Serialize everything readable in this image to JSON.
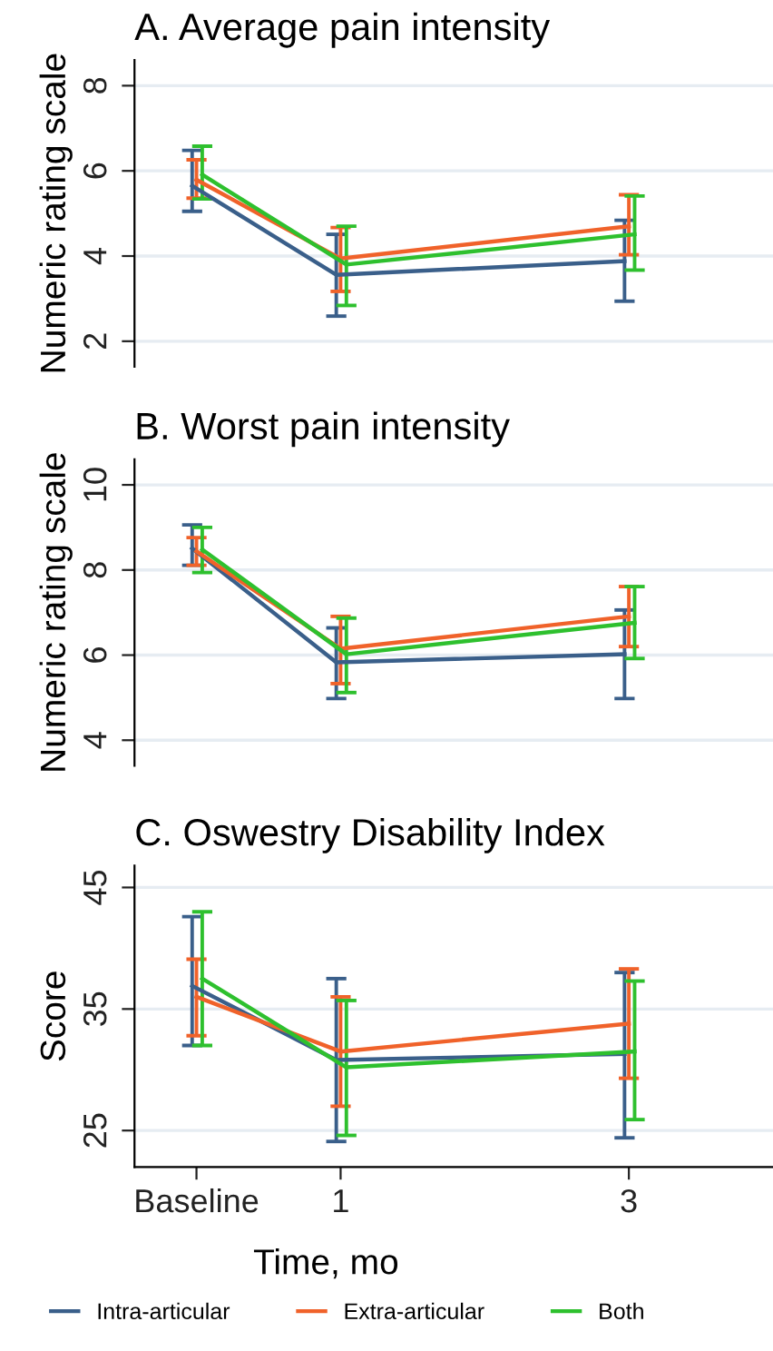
{
  "chart_data": [
    {
      "type": "line",
      "title": "A. Average pain intensity",
      "ylabel": "Numeric rating scale",
      "xlim": [
        -0.43,
        4.0
      ],
      "ylim": [
        1.4,
        8.6
      ],
      "yticks": [
        2,
        4,
        6,
        8
      ],
      "grid": "y",
      "tick_labels": "y",
      "marker": "none",
      "series": [
        {
          "color": "#3a5f8a",
          "x": [
            -0.03,
            0.97,
            2.97
          ],
          "values": [
            5.65,
            3.56,
            3.88
          ],
          "errors": [
            [
              5.05,
              6.48
            ],
            [
              2.59,
              4.51
            ],
            [
              2.94,
              4.84
            ]
          ]
        },
        {
          "color": "#f0622a",
          "x": [
            0,
            1,
            3
          ],
          "values": [
            5.79,
            3.94,
            4.7
          ],
          "errors": [
            [
              5.36,
              6.26
            ],
            [
              3.17,
              4.67
            ],
            [
              4.03,
              5.44
            ]
          ]
        },
        {
          "color": "#2ec02e",
          "x": [
            0.04,
            1.04,
            3.04
          ],
          "values": [
            5.91,
            3.8,
            4.51
          ],
          "errors": [
            [
              5.34,
              6.58
            ],
            [
              2.84,
              4.7
            ],
            [
              3.67,
              5.41
            ]
          ]
        }
      ]
    },
    {
      "type": "line",
      "title": "B. Worst pain intensity",
      "ylabel": "Numeric rating scale",
      "xlim": [
        -0.43,
        4.0
      ],
      "ylim": [
        3.4,
        10.6
      ],
      "yticks": [
        4,
        6,
        8,
        10
      ],
      "grid": "y",
      "tick_labels": "y",
      "marker": "none",
      "series": [
        {
          "color": "#3a5f8a",
          "x": [
            -0.03,
            0.97,
            2.97
          ],
          "values": [
            8.51,
            5.83,
            6.02
          ],
          "errors": [
            [
              8.11,
              9.06
            ],
            [
              4.98,
              6.64
            ],
            [
              4.98,
              7.06
            ]
          ]
        },
        {
          "color": "#f0622a",
          "x": [
            0,
            1,
            3
          ],
          "values": [
            8.44,
            6.15,
            6.91
          ],
          "errors": [
            [
              8.11,
              8.76
            ],
            [
              5.33,
              6.91
            ],
            [
              6.2,
              7.61
            ]
          ]
        },
        {
          "color": "#2ec02e",
          "x": [
            0.04,
            1.04,
            3.04
          ],
          "values": [
            8.48,
            6.02,
            6.76
          ],
          "errors": [
            [
              7.94,
              9.0
            ],
            [
              5.12,
              6.87
            ],
            [
              5.92,
              7.61
            ]
          ]
        }
      ]
    },
    {
      "type": "line",
      "title": "C. Oswestry Disability Index",
      "ylabel": "Score",
      "xlabel": "Time, mo",
      "xlim": [
        -0.43,
        4.0
      ],
      "xticks": [
        {
          "value": 0,
          "label": "Baseline"
        },
        1,
        3
      ],
      "ylim": [
        22,
        46.8
      ],
      "yticks": [
        25,
        35,
        45
      ],
      "grid": "y",
      "legend": "bottom",
      "marker": "none",
      "series": [
        {
          "name": "Intra-articular",
          "color": "#3a5f8a",
          "x": [
            -0.03,
            0.97,
            2.97
          ],
          "values": [
            36.9,
            30.8,
            31.3
          ],
          "errors": [
            [
              32.0,
              42.6
            ],
            [
              24.1,
              37.5
            ],
            [
              24.4,
              38.0
            ]
          ]
        },
        {
          "name": "Extra-articular",
          "color": "#f0622a",
          "x": [
            0,
            1,
            3
          ],
          "values": [
            36.0,
            31.5,
            33.8
          ],
          "errors": [
            [
              32.8,
              39.1
            ],
            [
              27.0,
              36.0
            ],
            [
              29.3,
              38.3
            ]
          ]
        },
        {
          "name": "Both",
          "color": "#2ec02e",
          "x": [
            0.04,
            1.04,
            3.04
          ],
          "values": [
            37.5,
            30.2,
            31.5
          ],
          "errors": [
            [
              32.0,
              43.0
            ],
            [
              24.6,
              35.7
            ],
            [
              25.9,
              37.3
            ]
          ]
        }
      ]
    }
  ]
}
